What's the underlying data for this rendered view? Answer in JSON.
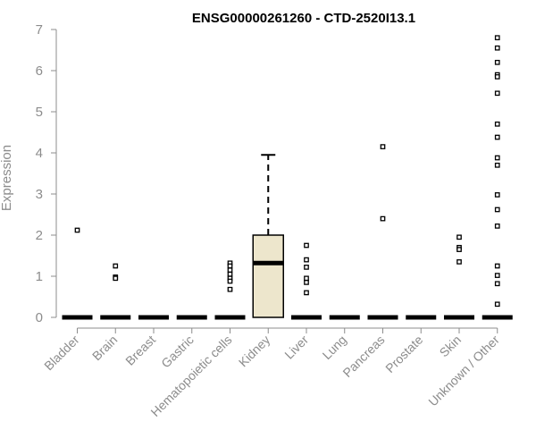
{
  "chart_data": {
    "type": "box",
    "title": "ENSG00000261260 - CTD-2520I13.1",
    "xlabel": "",
    "ylabel": "Expression",
    "ylim": [
      0,
      7
    ],
    "yticks": [
      0,
      1,
      2,
      3,
      4,
      5,
      6,
      7
    ],
    "grid": false,
    "legend": "none",
    "categories": [
      "Bladder",
      "Brain",
      "Breast",
      "Gastric",
      "Hematopoietic cells",
      "Kidney",
      "Liver",
      "Lung",
      "Pancreas",
      "Prostate",
      "Skin",
      "Unknown / Other"
    ],
    "boxes": [
      {
        "category": "Bladder",
        "q1": 0,
        "median": 0,
        "q3": 0,
        "whisker_low": 0,
        "whisker_high": 0,
        "outliers": [
          2.12
        ]
      },
      {
        "category": "Brain",
        "q1": 0,
        "median": 0,
        "q3": 0,
        "whisker_low": 0,
        "whisker_high": 0,
        "outliers": [
          1.25,
          0.98,
          0.95
        ]
      },
      {
        "category": "Breast",
        "q1": 0,
        "median": 0,
        "q3": 0,
        "whisker_low": 0,
        "whisker_high": 0,
        "outliers": []
      },
      {
        "category": "Gastric",
        "q1": 0,
        "median": 0,
        "q3": 0,
        "whisker_low": 0,
        "whisker_high": 0,
        "outliers": []
      },
      {
        "category": "Hematopoietic cells",
        "q1": 0,
        "median": 0,
        "q3": 0,
        "whisker_low": 0,
        "whisker_high": 0,
        "outliers": [
          1.32,
          1.25,
          1.15,
          1.05,
          0.95,
          0.88,
          0.68
        ]
      },
      {
        "category": "Kidney",
        "q1": 0,
        "median": 1.32,
        "q3": 2.0,
        "whisker_low": 0,
        "whisker_high": 3.95,
        "outliers": []
      },
      {
        "category": "Liver",
        "q1": 0,
        "median": 0,
        "q3": 0,
        "whisker_low": 0,
        "whisker_high": 0,
        "outliers": [
          1.75,
          1.4,
          1.22,
          0.95,
          0.85,
          0.6
        ]
      },
      {
        "category": "Lung",
        "q1": 0,
        "median": 0,
        "q3": 0,
        "whisker_low": 0,
        "whisker_high": 0,
        "outliers": []
      },
      {
        "category": "Pancreas",
        "q1": 0,
        "median": 0,
        "q3": 0,
        "whisker_low": 0,
        "whisker_high": 0,
        "outliers": [
          4.15,
          2.4
        ]
      },
      {
        "category": "Prostate",
        "q1": 0,
        "median": 0,
        "q3": 0,
        "whisker_low": 0,
        "whisker_high": 0,
        "outliers": []
      },
      {
        "category": "Skin",
        "q1": 0,
        "median": 0,
        "q3": 0,
        "whisker_low": 0,
        "whisker_high": 0,
        "outliers": [
          1.95,
          1.7,
          1.65,
          1.35
        ]
      },
      {
        "category": "Unknown / Other",
        "q1": 0,
        "median": 0,
        "q3": 0,
        "whisker_low": 0,
        "whisker_high": 0,
        "outliers": [
          6.8,
          6.55,
          6.2,
          5.9,
          5.85,
          5.45,
          4.7,
          4.38,
          3.88,
          3.7,
          2.98,
          2.62,
          2.22,
          1.25,
          1.02,
          0.82,
          0.32
        ]
      }
    ]
  },
  "colors": {
    "box_fill": "#ede6cc",
    "box_stroke": "#000000",
    "axis": "#8c8c8c",
    "title": "#000000"
  }
}
